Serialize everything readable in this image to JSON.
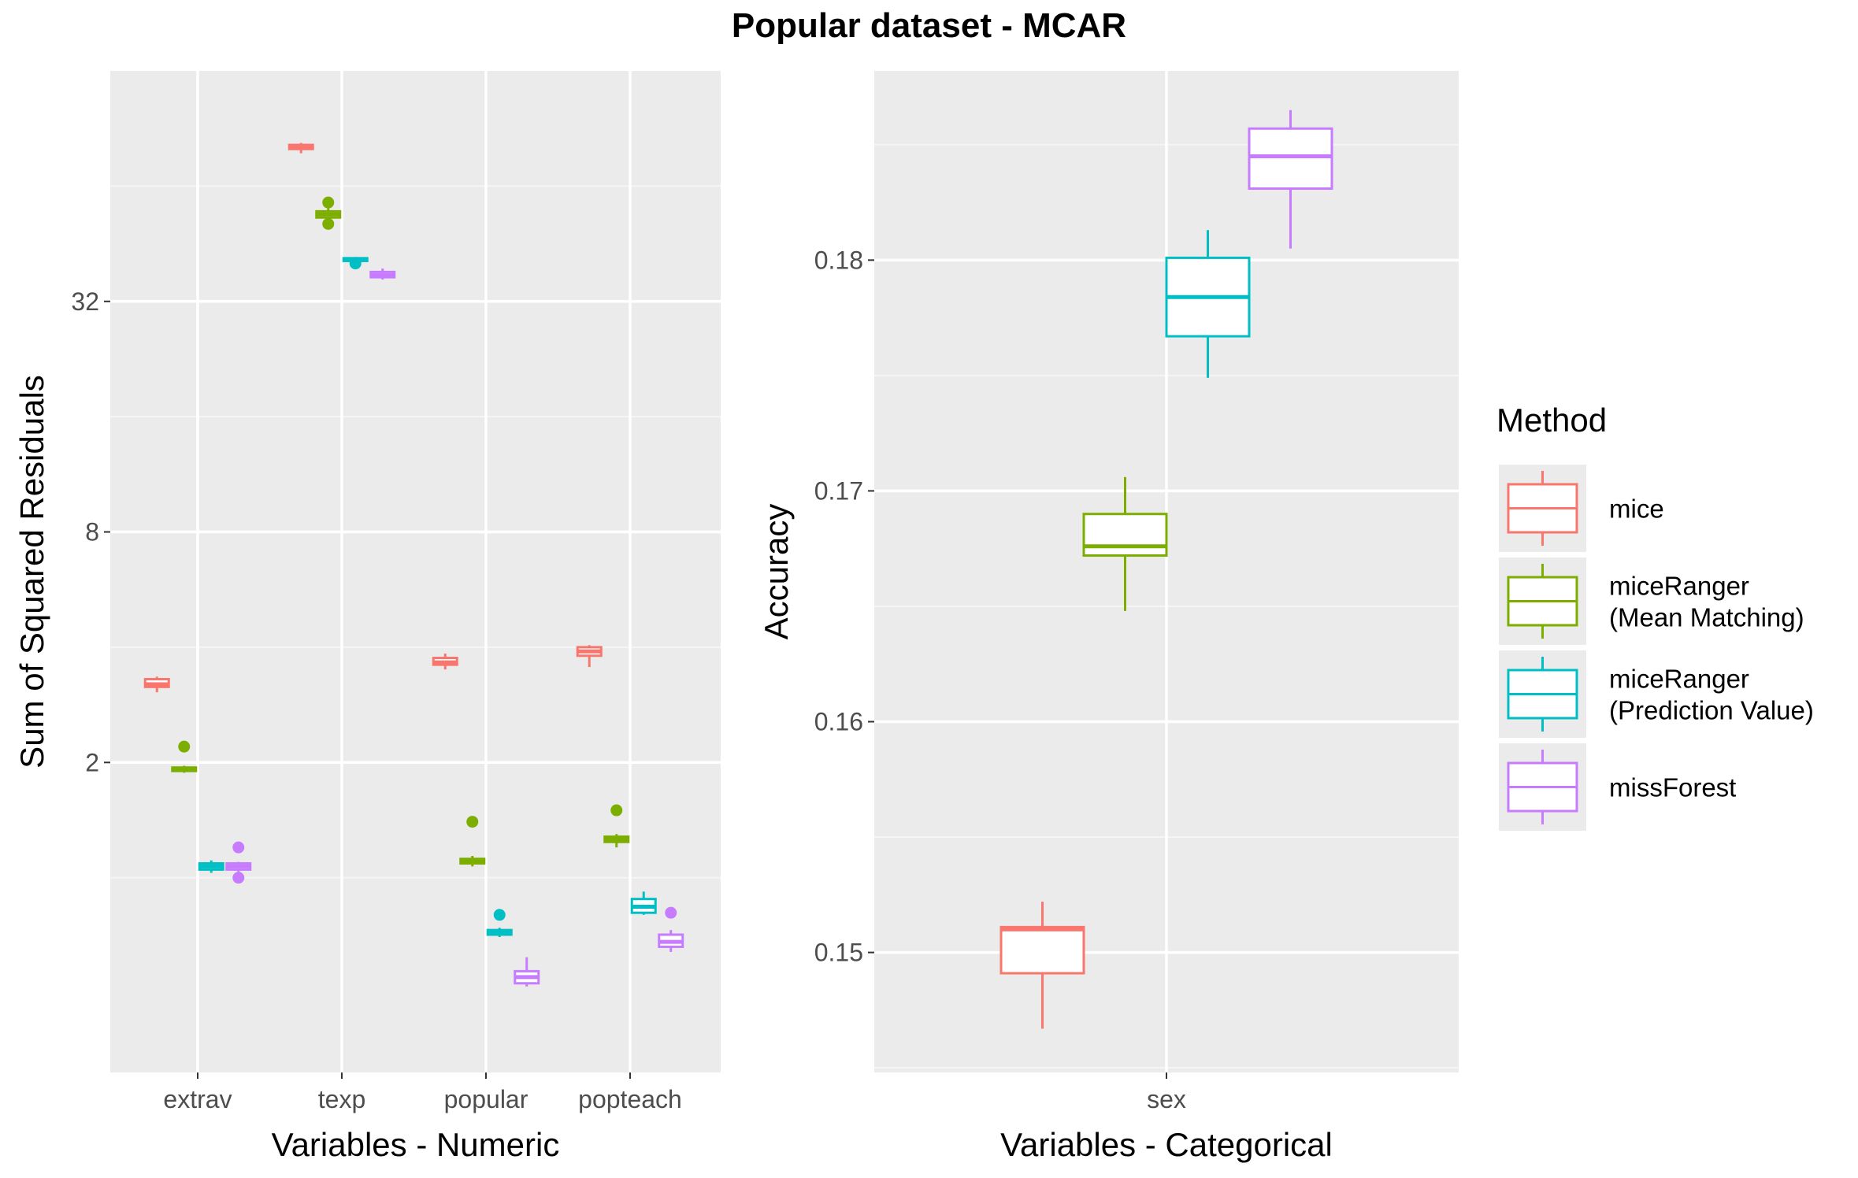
{
  "title": "Popular dataset - MCAR",
  "legend": {
    "title": "Method",
    "items": [
      {
        "label_lines": [
          "mice"
        ],
        "color": "#F8766D"
      },
      {
        "label_lines": [
          "miceRanger",
          "(Mean Matching)"
        ],
        "color": "#7CAE00"
      },
      {
        "label_lines": [
          "miceRanger",
          "(Prediction Value)"
        ],
        "color": "#00BFC4"
      },
      {
        "label_lines": [
          "missForest"
        ],
        "color": "#C77CFF"
      }
    ]
  },
  "chart_data": [
    {
      "type": "boxplot",
      "xlabel": "Variables - Numeric",
      "ylabel": "Sum of Squared Residuals",
      "y_scale": "log2",
      "ylim": [
        0.31,
        128
      ],
      "yticks": [
        2,
        8,
        32
      ],
      "ytick_labels": [
        "2",
        "8",
        "32"
      ],
      "categories": [
        "extrav",
        "texp",
        "popular",
        "popteach"
      ],
      "grid": true,
      "series": [
        {
          "name": "mice",
          "color": "#F8766D",
          "boxes": [
            {
              "min": 3.05,
              "q1": 3.15,
              "median": 3.2,
              "q3": 3.3,
              "max": 3.35,
              "outliers": []
            },
            {
              "min": 78,
              "q1": 80,
              "median": 81,
              "q3": 82,
              "max": 83,
              "outliers": []
            },
            {
              "min": 3.5,
              "q1": 3.6,
              "median": 3.65,
              "q3": 3.75,
              "max": 3.85,
              "outliers": []
            },
            {
              "min": 3.55,
              "q1": 3.8,
              "median": 3.9,
              "q3": 4.0,
              "max": 4.05,
              "outliers": []
            }
          ]
        },
        {
          "name": "miceRanger (Mean Matching)",
          "color": "#7CAE00",
          "boxes": [
            {
              "min": 1.88,
              "q1": 1.9,
              "median": 1.92,
              "q3": 1.94,
              "max": 1.96,
              "outliers": [
                2.2
              ]
            },
            {
              "min": 52,
              "q1": 53,
              "median": 54,
              "q3": 55,
              "max": 56,
              "outliers": [
                58,
                51
              ]
            },
            {
              "min": 1.07,
              "q1": 1.09,
              "median": 1.1,
              "q3": 1.12,
              "max": 1.14,
              "outliers": [
                1.4
              ]
            },
            {
              "min": 1.2,
              "q1": 1.24,
              "median": 1.26,
              "q3": 1.28,
              "max": 1.3,
              "outliers": [
                1.5
              ]
            }
          ]
        },
        {
          "name": "miceRanger (Prediction Value)",
          "color": "#00BFC4",
          "boxes": [
            {
              "min": 1.03,
              "q1": 1.05,
              "median": 1.07,
              "q3": 1.09,
              "max": 1.11,
              "outliers": []
            },
            {
              "min": 40.5,
              "q1": 40.8,
              "median": 41.1,
              "q3": 41.5,
              "max": 41.8,
              "outliers": [
                40.2
              ]
            },
            {
              "min": 0.7,
              "q1": 0.71,
              "median": 0.72,
              "q3": 0.73,
              "max": 0.74,
              "outliers": [
                0.8
              ]
            },
            {
              "min": 0.8,
              "q1": 0.81,
              "median": 0.84,
              "q3": 0.88,
              "max": 0.92,
              "outliers": []
            }
          ]
        },
        {
          "name": "missForest",
          "color": "#C77CFF",
          "boxes": [
            {
              "min": 1.02,
              "q1": 1.05,
              "median": 1.07,
              "q3": 1.09,
              "max": 1.1,
              "outliers": [
                1.2,
                1.0
              ]
            },
            {
              "min": 36.5,
              "q1": 37,
              "median": 37.5,
              "q3": 38.2,
              "max": 39,
              "outliers": []
            },
            {
              "min": 0.52,
              "q1": 0.53,
              "median": 0.55,
              "q3": 0.57,
              "max": 0.62,
              "outliers": []
            },
            {
              "min": 0.64,
              "q1": 0.66,
              "median": 0.68,
              "q3": 0.71,
              "max": 0.73,
              "outliers": [
                0.81
              ]
            }
          ]
        }
      ]
    },
    {
      "type": "boxplot",
      "xlabel": "Variables - Categorical",
      "ylabel": "Accuracy",
      "ylim": [
        0.1448,
        0.1882
      ],
      "yticks": [
        0.15,
        0.16,
        0.17,
        0.18
      ],
      "ytick_labels": [
        "0.15",
        "0.16",
        "0.17",
        "0.18"
      ],
      "categories": [
        "sex"
      ],
      "grid": true,
      "series": [
        {
          "name": "mice",
          "color": "#F8766D",
          "boxes": [
            {
              "min": 0.1467,
              "q1": 0.1491,
              "median": 0.151,
              "q3": 0.1511,
              "max": 0.1522,
              "outliers": []
            }
          ]
        },
        {
          "name": "miceRanger (Mean Matching)",
          "color": "#7CAE00",
          "boxes": [
            {
              "min": 0.1648,
              "q1": 0.1672,
              "median": 0.1676,
              "q3": 0.169,
              "max": 0.1706,
              "outliers": []
            }
          ]
        },
        {
          "name": "miceRanger (Prediction Value)",
          "color": "#00BFC4",
          "boxes": [
            {
              "min": 0.1749,
              "q1": 0.1767,
              "median": 0.1784,
              "q3": 0.1801,
              "max": 0.1813,
              "outliers": []
            }
          ]
        },
        {
          "name": "missForest",
          "color": "#C77CFF",
          "boxes": [
            {
              "min": 0.1805,
              "q1": 0.1831,
              "median": 0.1845,
              "q3": 0.1857,
              "max": 0.1865,
              "outliers": []
            }
          ]
        }
      ]
    }
  ]
}
